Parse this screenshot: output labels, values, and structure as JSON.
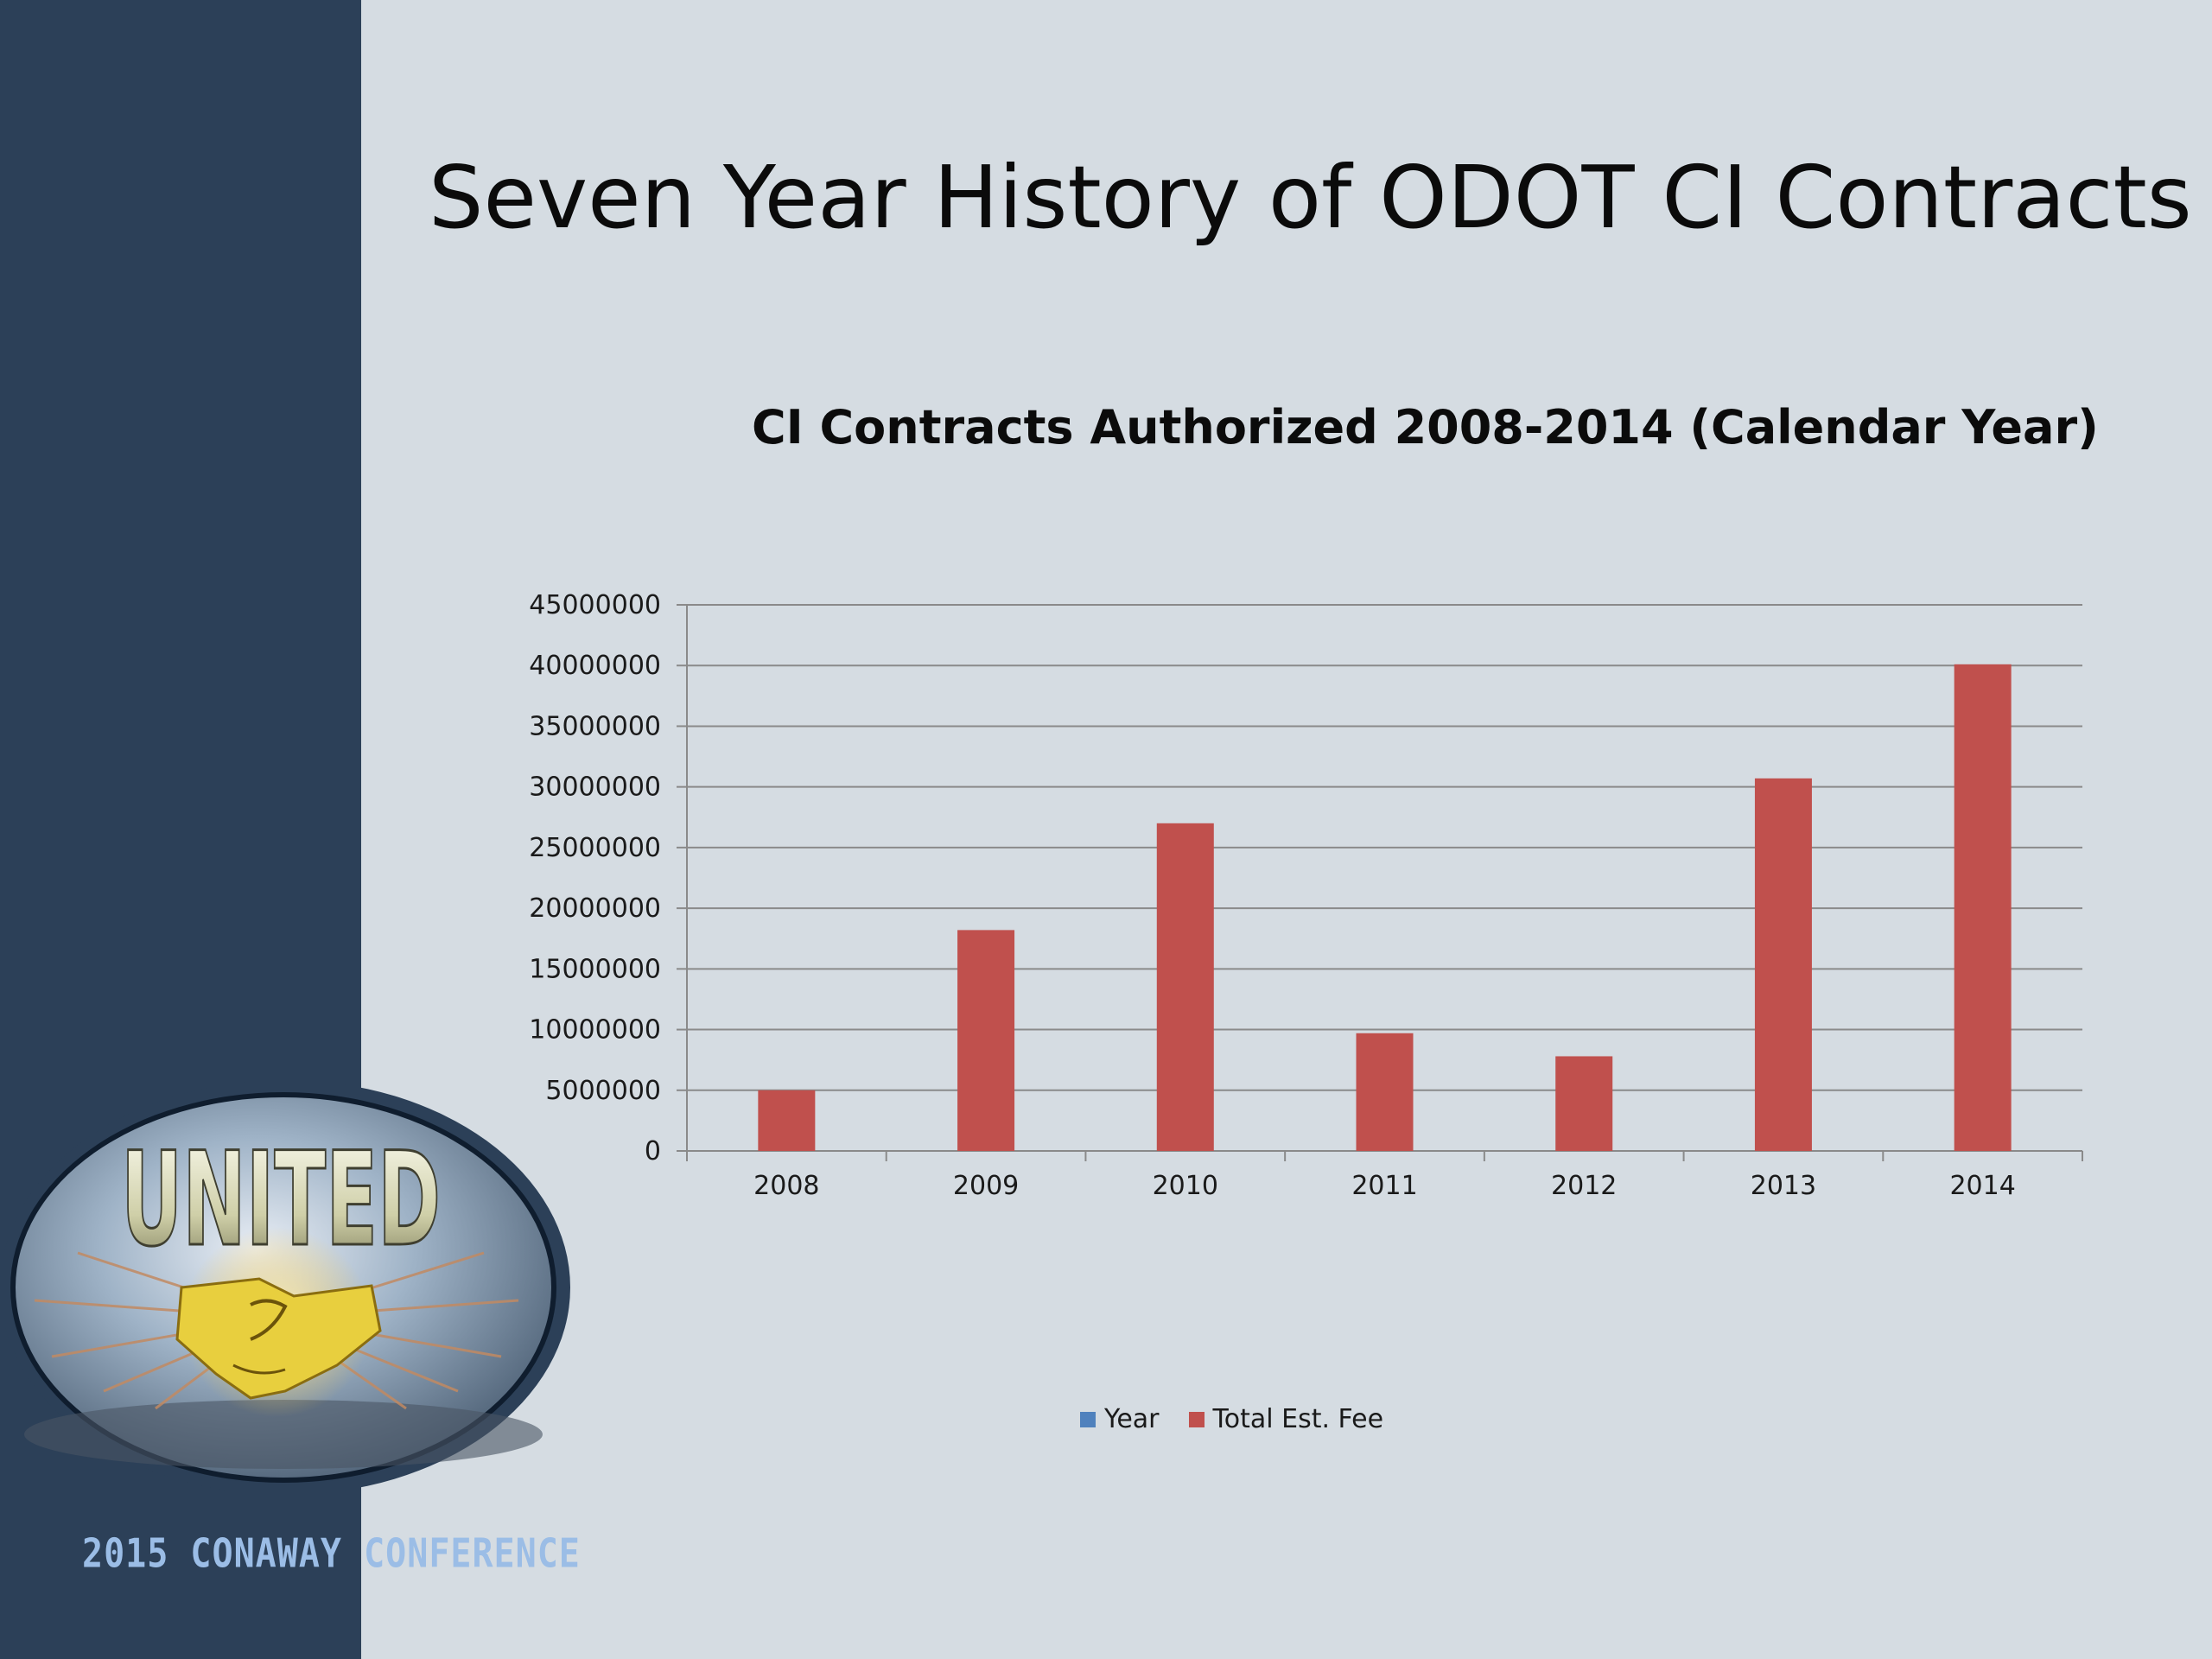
{
  "slide": {
    "title": "Seven Year History of ODOT CI Contracts"
  },
  "branding": {
    "logo_text": "UNITED",
    "logo_icon": "handshake-icon",
    "conference_text": "2015 CONAWAY CONFERENCE"
  },
  "colors": {
    "sidebar": "#2c4058",
    "background": "#d5dce2",
    "bar": "#c0504d",
    "year_series": "#4f81bd"
  },
  "chart_data": {
    "type": "bar",
    "title": "CI Contracts Authorized 2008-2014 (Calendar Year)",
    "categories": [
      "2008",
      "2009",
      "2010",
      "2011",
      "2012",
      "2013",
      "2014"
    ],
    "series": [
      {
        "name": "Year",
        "values": [
          2008,
          2009,
          2010,
          2011,
          2012,
          2013,
          2014
        ]
      },
      {
        "name": "Total Est. Fee",
        "values": [
          5000000,
          18200000,
          27000000,
          9700000,
          7800000,
          30700000,
          40100000
        ]
      }
    ],
    "yticks": [
      "0",
      "5000000",
      "10000000",
      "15000000",
      "20000000",
      "25000000",
      "30000000",
      "35000000",
      "40000000",
      "45000000"
    ],
    "ylim": [
      0,
      45000000
    ],
    "grid": true,
    "legend_position": "bottom"
  }
}
